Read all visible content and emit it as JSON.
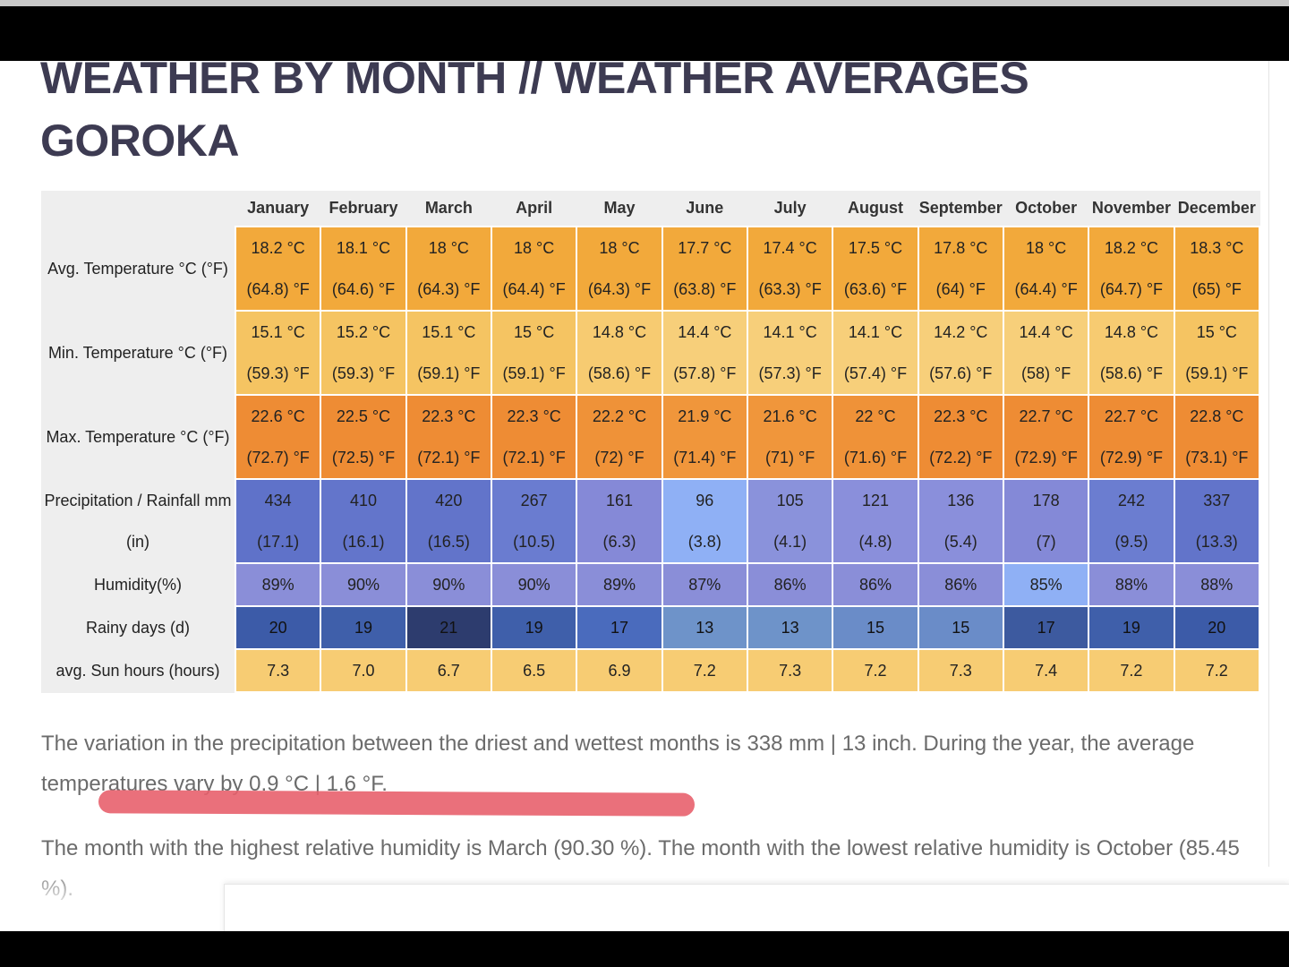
{
  "header": {
    "title_lines": [
      "WEATHER BY MONTH // WEATHER AVERAGES",
      "GOROKA"
    ]
  },
  "table": {
    "months": [
      "January",
      "February",
      "March",
      "April",
      "May",
      "June",
      "July",
      "August",
      "September",
      "October",
      "November",
      "December"
    ],
    "rows": [
      {
        "label": "Avg. Temperature °C (°F)",
        "cells": [
          [
            "18.2 °C",
            "(64.8) °F"
          ],
          [
            "18.1 °C",
            "(64.6) °F"
          ],
          [
            "18 °C",
            "(64.3) °F"
          ],
          [
            "18 °C",
            "(64.4) °F"
          ],
          [
            "18 °C",
            "(64.3) °F"
          ],
          [
            "17.7 °C",
            "(63.8) °F"
          ],
          [
            "17.4 °C",
            "(63.3) °F"
          ],
          [
            "17.5 °C",
            "(63.6) °F"
          ],
          [
            "17.8 °C",
            "(64) °F"
          ],
          [
            "18 °C",
            "(64.4) °F"
          ],
          [
            "18.2 °C",
            "(64.7) °F"
          ],
          [
            "18.3 °C",
            "(65) °F"
          ]
        ],
        "colors": [
          "#f2a93b",
          "#f2a93b",
          "#f2a93b",
          "#f2a93b",
          "#f2a93b",
          "#f2a93b",
          "#f2a93b",
          "#f2a93b",
          "#f2a93b",
          "#f2a93b",
          "#f2a93b",
          "#f2a93b"
        ]
      },
      {
        "label": "Min. Temperature °C (°F)",
        "cells": [
          [
            "15.1 °C",
            "(59.3) °F"
          ],
          [
            "15.2 °C",
            "(59.3) °F"
          ],
          [
            "15.1 °C",
            "(59.1) °F"
          ],
          [
            "15 °C",
            "(59.1) °F"
          ],
          [
            "14.8 °C",
            "(58.6) °F"
          ],
          [
            "14.4 °C",
            "(57.8) °F"
          ],
          [
            "14.1 °C",
            "(57.3) °F"
          ],
          [
            "14.1 °C",
            "(57.4) °F"
          ],
          [
            "14.2 °C",
            "(57.6) °F"
          ],
          [
            "14.4 °C",
            "(58) °F"
          ],
          [
            "14.8 °C",
            "(58.6) °F"
          ],
          [
            "15 °C",
            "(59.1) °F"
          ]
        ],
        "colors": [
          "#f5c462",
          "#f5c462",
          "#f5c462",
          "#f5c462",
          "#f7cb71",
          "#f7cf7a",
          "#f7cf7a",
          "#f7cf7a",
          "#f7cf7a",
          "#f7cf7a",
          "#f7cb71",
          "#f5c462"
        ]
      },
      {
        "label": "Max. Temperature °C (°F)",
        "cells": [
          [
            "22.6 °C",
            "(72.7) °F"
          ],
          [
            "22.5 °C",
            "(72.5) °F"
          ],
          [
            "22.3 °C",
            "(72.1) °F"
          ],
          [
            "22.3 °C",
            "(72.1) °F"
          ],
          [
            "22.2 °C",
            "(72) °F"
          ],
          [
            "21.9 °C",
            "(71.4) °F"
          ],
          [
            "21.6 °C",
            "(71) °F"
          ],
          [
            "22 °C",
            "(71.6) °F"
          ],
          [
            "22.3 °C",
            "(72.2) °F"
          ],
          [
            "22.7 °C",
            "(72.9) °F"
          ],
          [
            "22.7 °C",
            "(72.9) °F"
          ],
          [
            "22.8 °C",
            "(73.1) °F"
          ]
        ],
        "colors": [
          "#ee8c34",
          "#ee8c34",
          "#ee8c34",
          "#ee8c34",
          "#ef9238",
          "#f0963b",
          "#f0963b",
          "#ef9238",
          "#ee8c34",
          "#ee8c34",
          "#ee8c34",
          "#ee8c34"
        ]
      },
      {
        "label": "Precipitation / Rainfall mm (in)",
        "cells": [
          [
            "434",
            "(17.1)"
          ],
          [
            "410",
            "(16.1)"
          ],
          [
            "420",
            "(16.5)"
          ],
          [
            "267",
            "(10.5)"
          ],
          [
            "161",
            "(6.3)"
          ],
          [
            "96",
            "(3.8)"
          ],
          [
            "105",
            "(4.1)"
          ],
          [
            "121",
            "(4.8)"
          ],
          [
            "136",
            "(5.4)"
          ],
          [
            "178",
            "(7)"
          ],
          [
            "242",
            "(9.5)"
          ],
          [
            "337",
            "(13.3)"
          ]
        ],
        "colors": [
          "#5f72c9",
          "#6375cb",
          "#6274ca",
          "#6a7cd0",
          "#8589d7",
          "#8fb0f5",
          "#8a92db",
          "#8a8fdb",
          "#8a8fdb",
          "#8489d7",
          "#6b7dd0",
          "#6274ca"
        ]
      },
      {
        "label": "Humidity(%)",
        "cells": [
          [
            "89%"
          ],
          [
            "90%"
          ],
          [
            "90%"
          ],
          [
            "90%"
          ],
          [
            "89%"
          ],
          [
            "87%"
          ],
          [
            "86%"
          ],
          [
            "86%"
          ],
          [
            "86%"
          ],
          [
            "85%"
          ],
          [
            "88%"
          ],
          [
            "88%"
          ]
        ],
        "colors": [
          "#8a8ed8",
          "#8a8ed8",
          "#8a8ed8",
          "#8a8ed8",
          "#8a8ed8",
          "#8a8ed8",
          "#8a8ed8",
          "#8a8ed8",
          "#8a8ed8",
          "#8fb0f5",
          "#8a8ed8",
          "#8a8ed8"
        ]
      },
      {
        "label": "Rainy days (d)",
        "cells": [
          [
            "20"
          ],
          [
            "19"
          ],
          [
            "21"
          ],
          [
            "19"
          ],
          [
            "17"
          ],
          [
            "13"
          ],
          [
            "13"
          ],
          [
            "15"
          ],
          [
            "15"
          ],
          [
            "17"
          ],
          [
            "19"
          ],
          [
            "20"
          ]
        ],
        "colors": [
          "#3c5ba8",
          "#3f5faa",
          "#2d3c6e",
          "#3f5faa",
          "#4a6bbd",
          "#6e93c9",
          "#6e93c9",
          "#6a8cc8",
          "#6a8cc8",
          "#3d5a9f",
          "#3f5faa",
          "#3c5ba8"
        ]
      },
      {
        "label": "avg. Sun hours (hours)",
        "cells": [
          [
            "7.3"
          ],
          [
            "7.0"
          ],
          [
            "6.7"
          ],
          [
            "6.5"
          ],
          [
            "6.9"
          ],
          [
            "7.2"
          ],
          [
            "7.3"
          ],
          [
            "7.2"
          ],
          [
            "7.3"
          ],
          [
            "7.4"
          ],
          [
            "7.2"
          ],
          [
            "7.2"
          ]
        ],
        "colors": [
          "#f7cc73",
          "#f7cc73",
          "#f7cc73",
          "#f7cc73",
          "#f7cc73",
          "#f7cc73",
          "#f7cc73",
          "#f7cc73",
          "#f7cc73",
          "#f7cc73",
          "#f7cc73",
          "#f7cc73"
        ]
      }
    ]
  },
  "paragraphs": [
    "The variation in the precipitation between the driest and wettest months is 338 mm | 13 inch. During the year, the average temperatures vary by 0.9 °C | 1.6 °F.",
    "The month with the highest relative humidity is March (90.30 %). The month with the lowest relative humidity is October (85.45 %)."
  ]
}
